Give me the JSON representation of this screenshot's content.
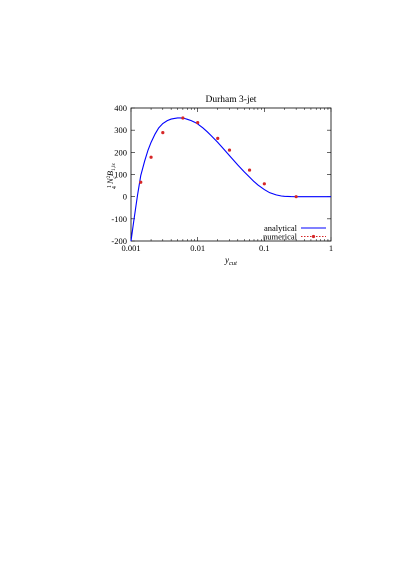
{
  "chart_data": {
    "type": "line",
    "title": "Durham 3-jet",
    "xlabel": "y_cut",
    "ylabel": "¼ N_c² B_{1,lc}",
    "xscale": "log",
    "xlim": [
      0.001,
      1
    ],
    "ylim": [
      -200,
      400
    ],
    "x_ticks": [
      0.001,
      0.01,
      0.1,
      1
    ],
    "x_tick_labels": [
      "0.001",
      "0.01",
      "0.1",
      "1"
    ],
    "y_ticks": [
      -200,
      -100,
      0,
      100,
      200,
      300,
      400
    ],
    "y_tick_labels": [
      "-200",
      "-100",
      "0",
      "100",
      "200",
      "300",
      "400"
    ],
    "grid": false,
    "legend_position": "bottom-right",
    "series": [
      {
        "name": "analytical",
        "style": "line",
        "color": "#0000ff",
        "x": [
          0.001,
          0.0011,
          0.00125,
          0.0014,
          0.0016,
          0.0018,
          0.002,
          0.0023,
          0.0026,
          0.003,
          0.0035,
          0.004,
          0.0045,
          0.005,
          0.0055,
          0.006,
          0.0065,
          0.007,
          0.008,
          0.009,
          0.01,
          0.012,
          0.014,
          0.016,
          0.02,
          0.025,
          0.03,
          0.04,
          0.05,
          0.06,
          0.07,
          0.08,
          0.1,
          0.12,
          0.15,
          0.18,
          0.2,
          0.25,
          0.3,
          0.333,
          0.5,
          0.7,
          1.0
        ],
        "y": [
          -200,
          -110,
          5,
          95,
          160,
          210,
          245,
          283,
          310,
          330,
          343,
          350,
          353,
          355,
          355,
          354,
          352,
          349,
          343,
          336,
          328,
          310,
          292,
          275,
          245,
          212,
          185,
          143,
          112,
          88,
          68,
          53,
          32,
          18,
          8,
          3,
          1.5,
          0.3,
          0,
          0,
          0,
          0,
          0
        ]
      },
      {
        "name": "numerical",
        "style": "points",
        "color": "#d62728",
        "x": [
          0.0014,
          0.002,
          0.003,
          0.006,
          0.01,
          0.02,
          0.03,
          0.06,
          0.1,
          0.3
        ],
        "y": [
          65,
          178,
          289,
          355,
          334,
          263,
          210,
          120,
          58,
          0
        ]
      }
    ]
  }
}
